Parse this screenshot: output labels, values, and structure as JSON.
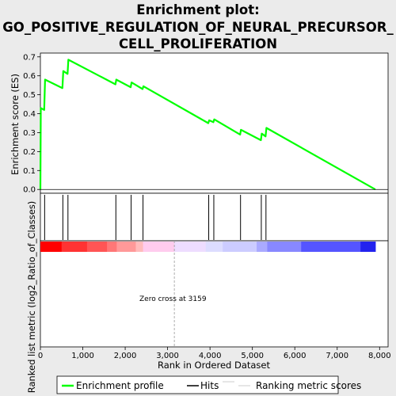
{
  "chart_data": {
    "type": "line",
    "title_lines": [
      "Enrichment plot:",
      "GO_POSITIVE_REGULATION_OF_NEURAL_PRECURSOR_",
      "CELL_PROLIFERATION"
    ],
    "top_panel": {
      "ylabel": "Enrichment score (ES)",
      "ylim": [
        -0.02,
        0.72
      ],
      "yticks": [
        0.0,
        0.1,
        0.2,
        0.3,
        0.4,
        0.5,
        0.6,
        0.7
      ],
      "ytick_labels": [
        "0.0",
        "0.1",
        "0.2",
        "0.3",
        "0.4",
        "0.5",
        "0.6",
        "0.7"
      ],
      "series": [
        {
          "name": "Enrichment profile",
          "color": "#00ff00",
          "x": [
            0,
            10,
            90,
            110,
            520,
            540,
            640,
            660,
            1770,
            1790,
            2130,
            2150,
            2410,
            2430,
            3960,
            3980,
            4080,
            4100,
            4710,
            4730,
            5200,
            5220,
            5310,
            5330,
            7900
          ],
          "y": [
            0.0,
            0.43,
            0.42,
            0.58,
            0.535,
            0.625,
            0.61,
            0.685,
            0.555,
            0.58,
            0.54,
            0.565,
            0.53,
            0.545,
            0.35,
            0.365,
            0.355,
            0.37,
            0.29,
            0.315,
            0.26,
            0.295,
            0.28,
            0.325,
            0.0
          ]
        }
      ]
    },
    "hits": [
      100,
      530,
      650,
      1780,
      2140,
      2420,
      3970,
      4090,
      4720,
      5210,
      5320
    ],
    "bottom_panel": {
      "ylabel": "Ranked list metric (log2_Ratio_of_Classes)",
      "annotation": "Zero cross at 3159",
      "zero_cross": 3159,
      "gradient_colors": [
        "#ff0000",
        "#ff3333",
        "#ff5555",
        "#ff7777",
        "#ff9999",
        "#ffbbbb",
        "#ffccee",
        "#eeddff",
        "#ddddff",
        "#ccccff",
        "#aaaaff",
        "#8888ff",
        "#5555ff",
        "#2222ee",
        "#0000cc"
      ],
      "gradient_bounds": [
        0,
        500,
        1100,
        1570,
        1800,
        2250,
        2420,
        3159,
        3900,
        4300,
        5100,
        5350,
        6150,
        7550,
        7900
      ]
    },
    "xlabel": "Rank in Ordered Dataset",
    "xlim": [
      0,
      8200
    ],
    "xticks": [
      0,
      1000,
      2000,
      3000,
      4000,
      5000,
      6000,
      7000,
      8000
    ],
    "xtick_labels": [
      "0",
      "1,000",
      "2,000",
      "3,000",
      "4,000",
      "5,000",
      "6,000",
      "7,000",
      "8,000"
    ],
    "legend": {
      "placement": "bottom",
      "items": [
        {
          "label": "Enrichment profile",
          "color": "#00ff00"
        },
        {
          "label": "Hits",
          "color": "#000000"
        },
        {
          "label": "Ranking metric scores",
          "color": "#cccccc"
        }
      ]
    }
  }
}
